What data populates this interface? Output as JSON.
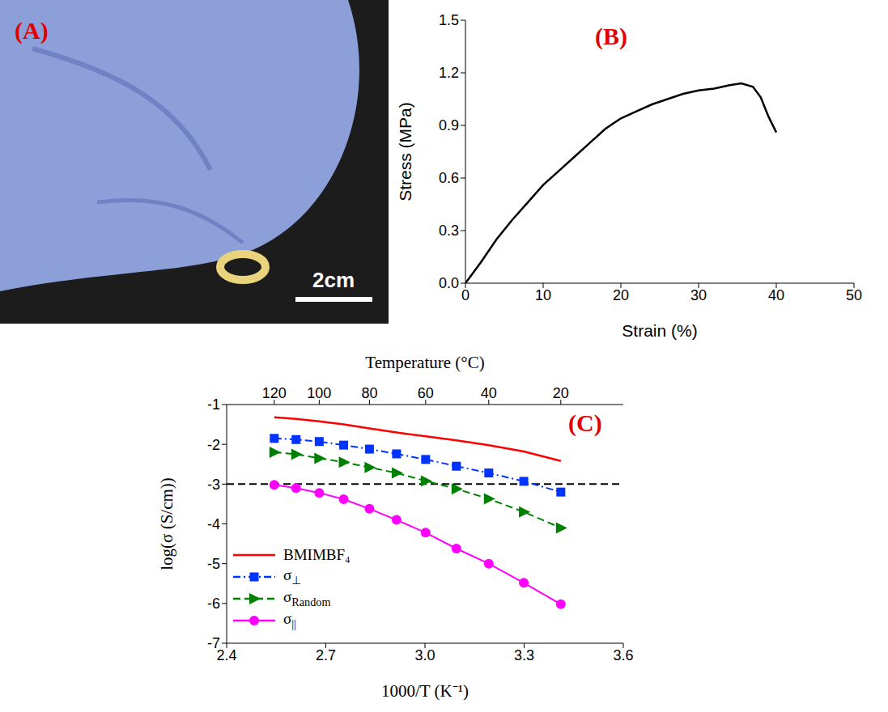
{
  "chart_data": [
    {
      "type": "image",
      "title": "(A)",
      "annotations": [
        "2cm"
      ]
    },
    {
      "type": "line",
      "title": "(B)",
      "x_label": "Strain (%)",
      "y_label": "Stress (MPa)",
      "x": [
        0,
        2,
        4,
        6,
        8,
        10,
        12,
        14,
        16,
        18,
        20,
        22,
        24,
        26,
        28,
        30,
        32,
        34,
        35.5,
        37,
        38,
        39,
        40
      ],
      "values": [
        0,
        0.12,
        0.25,
        0.36,
        0.46,
        0.56,
        0.64,
        0.72,
        0.8,
        0.88,
        0.94,
        0.98,
        1.02,
        1.05,
        1.08,
        1.1,
        1.11,
        1.13,
        1.14,
        1.12,
        1.06,
        0.95,
        0.86
      ],
      "color": "#000000",
      "xlim": [
        0,
        50
      ],
      "xticks": [
        0,
        10,
        20,
        30,
        40,
        50
      ],
      "ylim": [
        0,
        1.5
      ],
      "yticks": [
        {
          "value": 0,
          "label": "0.0"
        },
        0.3,
        0.6,
        0.9,
        1.2,
        1.5
      ]
    },
    {
      "type": "line",
      "title": "(C)",
      "x_label": "1000/T (K⁻¹)",
      "y_label": "log(σ (S/cm))",
      "x2_label": "Temperature (°C)",
      "x": [
        2.544,
        2.61,
        2.68,
        2.754,
        2.832,
        2.914,
        3.002,
        3.095,
        3.193,
        3.299,
        3.411
      ],
      "xlim": [
        2.4,
        3.6
      ],
      "xticks": [
        2.4,
        2.7,
        {
          "value": 3,
          "label": "3.0"
        },
        3.3,
        3.6
      ],
      "x2lim": [
        2.4,
        3.6
      ],
      "x2ticks": [
        {
          "value": 2.544,
          "label": "120"
        },
        {
          "value": 2.68,
          "label": "100"
        },
        {
          "value": 2.832,
          "label": "80"
        },
        {
          "value": 3.002,
          "label": "60"
        },
        {
          "value": 3.193,
          "label": "40"
        },
        {
          "value": 3.411,
          "label": "20"
        }
      ],
      "ylim": [
        -7,
        -1
      ],
      "yticks": [
        -7,
        -6,
        -5,
        -4,
        -3,
        -2,
        -1
      ],
      "reference_line": {
        "y": -3,
        "color": "#000000",
        "line_style": "dashed"
      },
      "legend": "lower left",
      "series": [
        {
          "name": "BMIMBF₄",
          "color": "#ff0000",
          "marker": "none",
          "line_style": "solid",
          "values": [
            -1.32,
            -1.36,
            -1.42,
            -1.5,
            -1.6,
            -1.7,
            -1.8,
            -1.9,
            -2.02,
            -2.18,
            -2.42
          ]
        },
        {
          "name": "σ⊥",
          "color": "#0033ff",
          "marker": "square",
          "line_style": "dashdot",
          "values": [
            -1.85,
            -1.88,
            -1.93,
            -2.02,
            -2.12,
            -2.24,
            -2.38,
            -2.55,
            -2.72,
            -2.93,
            -3.2
          ]
        },
        {
          "name": "σRandom",
          "color": "#008000",
          "marker": "triangle-right",
          "line_style": "dashed",
          "values": [
            -2.2,
            -2.25,
            -2.35,
            -2.45,
            -2.58,
            -2.72,
            -2.92,
            -3.12,
            -3.37,
            -3.7,
            -4.1
          ]
        },
        {
          "name": "σ||",
          "color": "#ff00ff",
          "marker": "circle",
          "line_style": "solid",
          "values": [
            -3.02,
            -3.1,
            -3.22,
            -3.38,
            -3.62,
            -3.9,
            -4.22,
            -4.62,
            -5.0,
            -5.48,
            -6.02
          ]
        }
      ]
    }
  ]
}
